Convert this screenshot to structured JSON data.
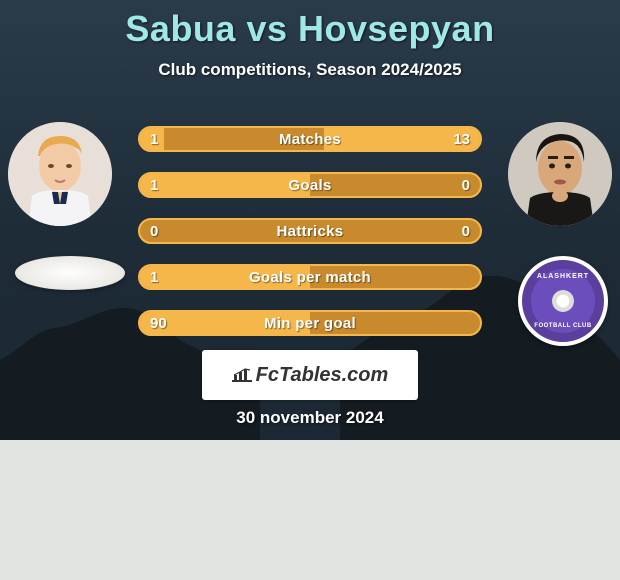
{
  "title": "Sabua vs Hovsepyan",
  "subtitle": "Club competitions, Season 2024/2025",
  "date": "30 november 2024",
  "colors": {
    "title": "#9fe8e4",
    "text": "#ffffff",
    "bar_border": "#f5b64a",
    "bar_base": "#c88a2c",
    "bar_fill": "#f5b64a",
    "background_top": "#2a3b4a",
    "background_bottom": "#1a2530",
    "lower_panel": "#e2e4e2",
    "club_right_primary": "#5a3f9e",
    "club_right_secondary": "#6b4ebc"
  },
  "typography": {
    "title_fontsize": 36,
    "subtitle_fontsize": 17,
    "bar_label_fontsize": 15,
    "date_fontsize": 17
  },
  "players": {
    "left": {
      "name": "Sabua"
    },
    "right": {
      "name": "Hovsepyan"
    }
  },
  "clubs": {
    "right_name": "ALASHKERT",
    "right_sub": "FOOTBALL CLUB"
  },
  "bars": [
    {
      "label": "Matches",
      "left": "1",
      "right": "13",
      "left_pct": 7,
      "right_pct": 46
    },
    {
      "label": "Goals",
      "left": "1",
      "right": "0",
      "left_pct": 50,
      "right_pct": 0
    },
    {
      "label": "Hattricks",
      "left": "0",
      "right": "0",
      "left_pct": 0,
      "right_pct": 0
    },
    {
      "label": "Goals per match",
      "left": "1",
      "right": "",
      "left_pct": 50,
      "right_pct": 0
    },
    {
      "label": "Min per goal",
      "left": "90",
      "right": "",
      "left_pct": 50,
      "right_pct": 0
    }
  ],
  "brand": {
    "text": "FcTables.com"
  }
}
